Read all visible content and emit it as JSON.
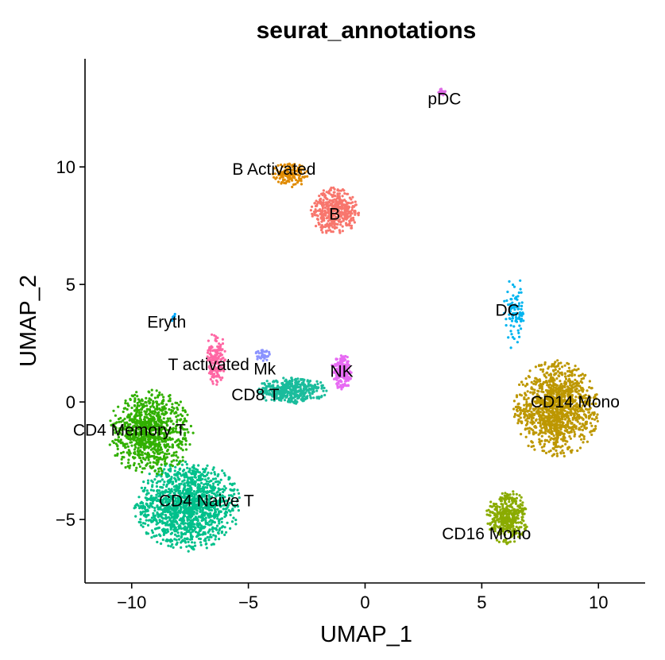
{
  "chart_data": {
    "type": "scatter",
    "title": "seurat_annotations",
    "xlabel": "UMAP_1",
    "ylabel": "UMAP_2",
    "xlim": [
      -12,
      12
    ],
    "ylim": [
      -7.7,
      14.6
    ],
    "x_ticks": [
      "−10",
      "−5",
      "0",
      "5",
      "10"
    ],
    "x_tick_values": [
      -10,
      -5,
      0,
      5,
      10
    ],
    "y_ticks": [
      "−5",
      "0",
      "5",
      "10"
    ],
    "y_tick_values": [
      -5,
      0,
      5,
      10
    ],
    "grid": false,
    "legend": "none",
    "clusters": [
      {
        "name": "CD4 Naive T",
        "color": "#00C08B",
        "center": [
          -7.6,
          -4.4
        ],
        "spread": [
          2.0,
          1.7
        ],
        "n": 1400,
        "label_pos": [
          -6.8,
          -4.2
        ]
      },
      {
        "name": "CD4 Memory T",
        "color": "#31B000",
        "center": [
          -9.2,
          -1.3
        ],
        "spread": [
          1.6,
          1.6
        ],
        "n": 900,
        "label_pos": [
          -10.1,
          -1.2
        ]
      },
      {
        "name": "CD14 Mono",
        "color": "#BD9700",
        "center": [
          8.2,
          -0.3
        ],
        "spread": [
          1.6,
          1.8
        ],
        "n": 1200,
        "label_pos": [
          9.0,
          0.0
        ]
      },
      {
        "name": "B",
        "color": "#F8766D",
        "center": [
          -1.3,
          8.1
        ],
        "spread": [
          0.9,
          0.9
        ],
        "n": 420,
        "label_pos": [
          -1.3,
          8.0
        ]
      },
      {
        "name": "CD8 T",
        "color": "#1ABC9C",
        "center": [
          -3.2,
          0.5
        ],
        "spread": [
          1.4,
          0.5
        ],
        "n": 420,
        "label_pos": [
          -4.7,
          0.3
        ]
      },
      {
        "name": "NK",
        "color": "#E76BF3",
        "center": [
          -1.0,
          1.3
        ],
        "spread": [
          0.4,
          0.7
        ],
        "n": 220,
        "label_pos": [
          -1.0,
          1.3
        ]
      },
      {
        "name": "CD16 Mono",
        "color": "#8AAB00",
        "center": [
          6.1,
          -4.9
        ],
        "spread": [
          0.8,
          1.0
        ],
        "n": 380,
        "label_pos": [
          5.2,
          -5.6
        ]
      },
      {
        "name": "T activated",
        "color": "#FF67A4",
        "center": [
          -6.4,
          1.8
        ],
        "spread": [
          0.4,
          1.0
        ],
        "n": 160,
        "label_pos": [
          -6.7,
          1.6
        ]
      },
      {
        "name": "DC",
        "color": "#00B4EF",
        "center": [
          6.4,
          3.8
        ],
        "spread": [
          0.4,
          1.4
        ],
        "n": 90,
        "label_pos": [
          6.1,
          3.9
        ]
      },
      {
        "name": "B Activated",
        "color": "#E08B00",
        "center": [
          -3.2,
          9.7
        ],
        "spread": [
          0.7,
          0.5
        ],
        "n": 140,
        "label_pos": [
          -3.9,
          9.9
        ]
      },
      {
        "name": "Mk",
        "color": "#8B93FF",
        "center": [
          -4.4,
          2.0
        ],
        "spread": [
          0.3,
          0.25
        ],
        "n": 40,
        "label_pos": [
          -4.3,
          1.4
        ]
      },
      {
        "name": "pDC",
        "color": "#DE6AE6",
        "center": [
          3.3,
          13.2
        ],
        "spread": [
          0.15,
          0.15
        ],
        "n": 18,
        "label_pos": [
          3.4,
          12.9
        ]
      },
      {
        "name": "Eryth",
        "color": "#00A9FF",
        "center": [
          -8.2,
          3.6
        ],
        "spread": [
          0.1,
          0.2
        ],
        "n": 10,
        "label_pos": [
          -8.5,
          3.4
        ]
      }
    ]
  }
}
